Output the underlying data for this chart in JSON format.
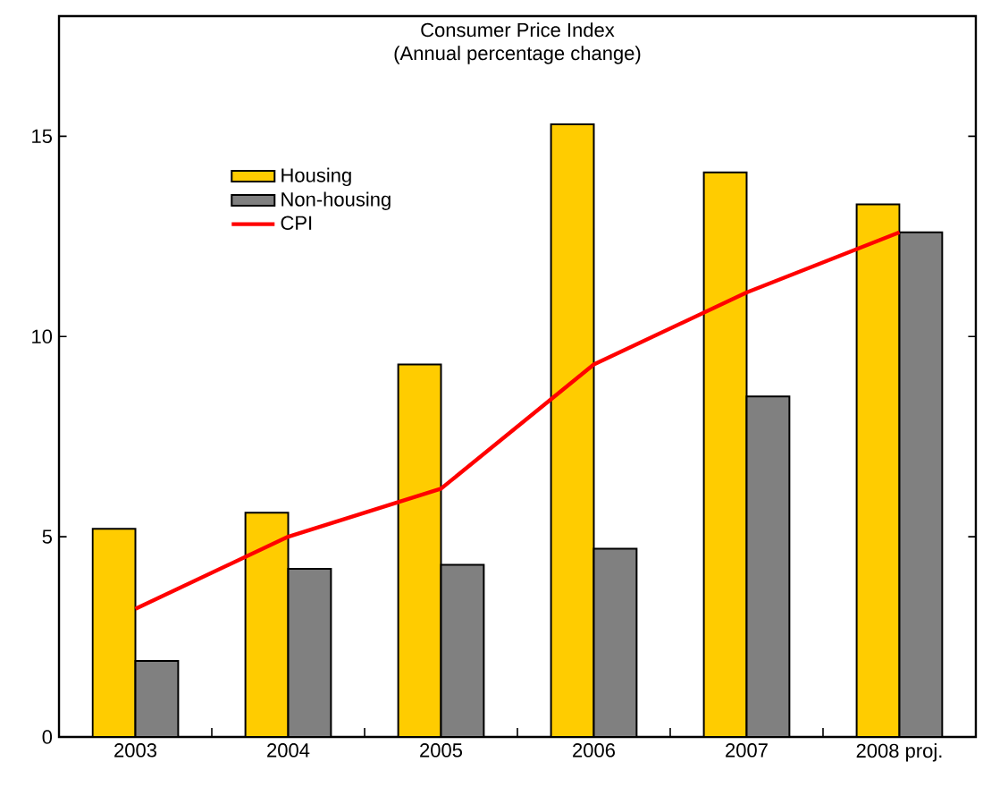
{
  "chart_data": {
    "type": "bar",
    "title": "Consumer Price Index",
    "subtitle": "(Annual percentage change)",
    "categories": [
      "2003",
      "2004",
      "2005",
      "2006",
      "2007",
      "2008 proj."
    ],
    "series": [
      {
        "name": "Housing",
        "type": "bar",
        "color": "#ffcc00",
        "values": [
          5.2,
          5.6,
          9.3,
          15.3,
          14.1,
          13.3
        ]
      },
      {
        "name": "Non-housing",
        "type": "bar",
        "color": "#808080",
        "values": [
          1.9,
          4.2,
          4.3,
          4.7,
          8.5,
          12.6
        ]
      },
      {
        "name": "CPI",
        "type": "line",
        "color": "#ff0000",
        "values": [
          3.2,
          5.0,
          6.2,
          9.3,
          11.1,
          12.6
        ]
      }
    ],
    "ylim": [
      0,
      18
    ],
    "yticks": [
      0,
      5,
      10,
      15
    ],
    "legend": "top left",
    "grid": false
  }
}
